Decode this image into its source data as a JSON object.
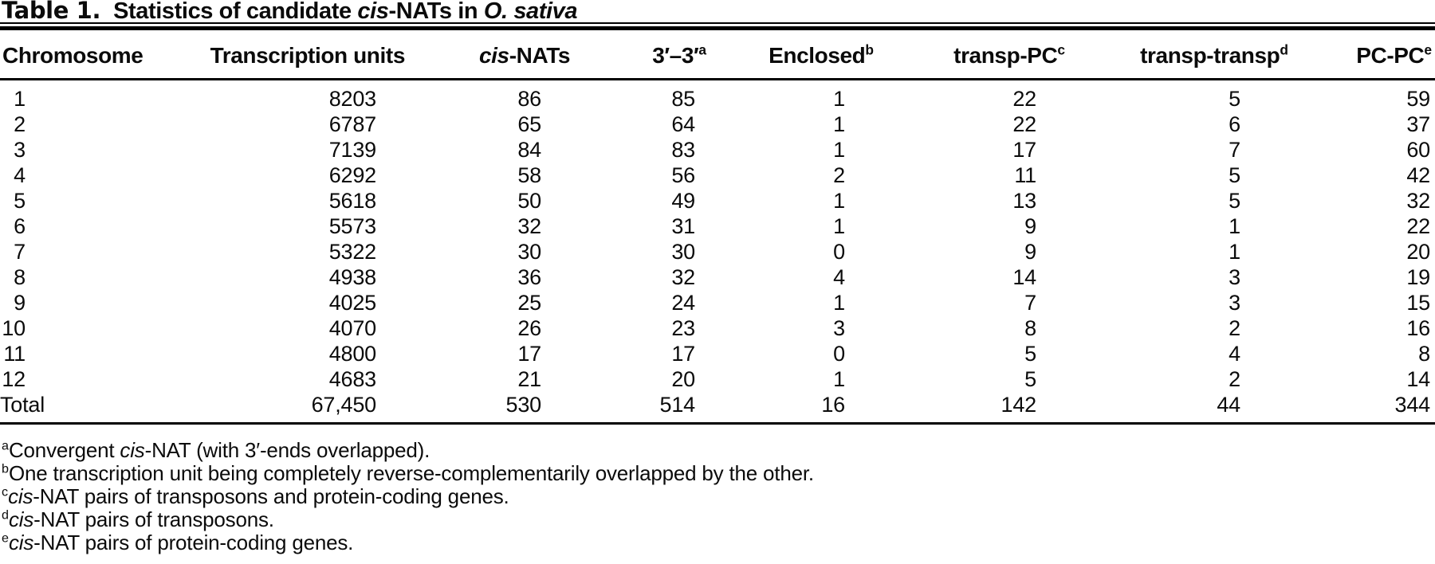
{
  "colors": {
    "background": "#ffffff",
    "text": "#0b0b0b",
    "rule": "#000000"
  },
  "title": {
    "parts": [
      {
        "t": "Table 1.",
        "hv": 1
      },
      {
        "t": "Statistics of candidate "
      },
      {
        "t": "cis",
        "i": 1
      },
      {
        "t": "-NATs in "
      },
      {
        "t": "O. sativa",
        "i": 1
      }
    ]
  },
  "table": {
    "columns": [
      {
        "id": "chromosome",
        "label": [
          {
            "t": "Chromosome"
          }
        ]
      },
      {
        "id": "transcription-units",
        "label": [
          {
            "t": "Transcription units"
          }
        ]
      },
      {
        "id": "cis-nats",
        "label": [
          {
            "t": "cis",
            "i": 1
          },
          {
            "t": "-NATs"
          }
        ]
      },
      {
        "id": "3prime-3prime",
        "label": [
          {
            "t": "3′–3′"
          },
          {
            "t": "a",
            "s": 1
          }
        ]
      },
      {
        "id": "enclosed",
        "label": [
          {
            "t": "Enclosed"
          },
          {
            "t": "b",
            "s": 1
          }
        ]
      },
      {
        "id": "transp-pc",
        "label": [
          {
            "t": "transp-PC"
          },
          {
            "t": "c",
            "s": 1
          }
        ]
      },
      {
        "id": "transp-transp",
        "label": [
          {
            "t": "transp-transp"
          },
          {
            "t": "d",
            "s": 1
          }
        ]
      },
      {
        "id": "pc-pc",
        "label": [
          {
            "t": "PC-PC"
          },
          {
            "t": "e",
            "s": 1
          }
        ]
      }
    ],
    "rows": [
      [
        "1",
        "8203",
        "86",
        "85",
        "1",
        "22",
        "5",
        "59"
      ],
      [
        "2",
        "6787",
        "65",
        "64",
        "1",
        "22",
        "6",
        "37"
      ],
      [
        "3",
        "7139",
        "84",
        "83",
        "1",
        "17",
        "7",
        "60"
      ],
      [
        "4",
        "6292",
        "58",
        "56",
        "2",
        "11",
        "5",
        "42"
      ],
      [
        "5",
        "5618",
        "50",
        "49",
        "1",
        "13",
        "5",
        "32"
      ],
      [
        "6",
        "5573",
        "32",
        "31",
        "1",
        "9",
        "1",
        "22"
      ],
      [
        "7",
        "5322",
        "30",
        "30",
        "0",
        "9",
        "1",
        "20"
      ],
      [
        "8",
        "4938",
        "36",
        "32",
        "4",
        "14",
        "3",
        "19"
      ],
      [
        "9",
        "4025",
        "25",
        "24",
        "1",
        "7",
        "3",
        "15"
      ],
      [
        "10",
        "4070",
        "26",
        "23",
        "3",
        "8",
        "2",
        "16"
      ],
      [
        "11",
        "4800",
        "17",
        "17",
        "0",
        "5",
        "4",
        "8"
      ],
      [
        "12",
        "4683",
        "21",
        "20",
        "1",
        "5",
        "2",
        "14"
      ],
      [
        "Total",
        "67,450",
        "530",
        "514",
        "16",
        "142",
        "44",
        "344"
      ]
    ]
  },
  "footnotes": [
    {
      "marker": "a",
      "parts": [
        {
          "t": "a",
          "s": 1
        },
        {
          "t": "Convergent "
        },
        {
          "t": "cis",
          "i": 1
        },
        {
          "t": "-NAT (with 3′-ends overlapped)."
        }
      ]
    },
    {
      "marker": "b",
      "parts": [
        {
          "t": "b",
          "s": 1
        },
        {
          "t": "One transcription unit being completely reverse-complementarily overlapped by the other."
        }
      ]
    },
    {
      "marker": "c",
      "parts": [
        {
          "t": "c",
          "s": 1
        },
        {
          "t": "cis",
          "i": 1
        },
        {
          "t": "-NAT pairs of transposons and protein-coding genes."
        }
      ]
    },
    {
      "marker": "d",
      "parts": [
        {
          "t": "d",
          "s": 1
        },
        {
          "t": "cis",
          "i": 1
        },
        {
          "t": "-NAT pairs of transposons."
        }
      ]
    },
    {
      "marker": "e",
      "parts": [
        {
          "t": "e",
          "s": 1
        },
        {
          "t": "cis",
          "i": 1
        },
        {
          "t": "-NAT pairs of protein-coding genes."
        }
      ]
    }
  ]
}
